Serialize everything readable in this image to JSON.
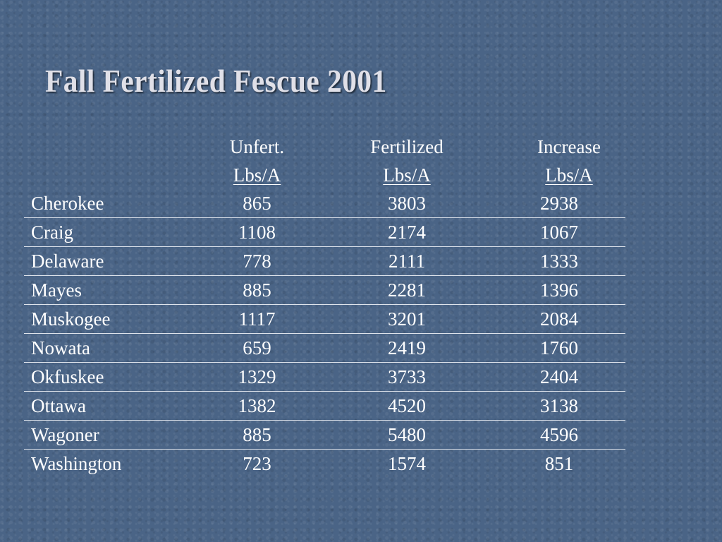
{
  "title": "Fall Fertilized Fescue 2001",
  "table": {
    "headers_row1": [
      "",
      "Unfert.",
      "Fertilized",
      "Increase"
    ],
    "headers_row2": [
      "",
      "Lbs/A",
      "Lbs/A",
      "Lbs/A"
    ],
    "rows": [
      {
        "county": "Cherokee",
        "unfert": "865",
        "fert": "3803",
        "increase": "2938"
      },
      {
        "county": "Craig",
        "unfert": "1108",
        "fert": "2174",
        "increase": "1067"
      },
      {
        "county": "Delaware",
        "unfert": "778",
        "fert": "2111",
        "increase": "1333"
      },
      {
        "county": "Mayes",
        "unfert": "885",
        "fert": "2281",
        "increase": "1396"
      },
      {
        "county": "Muskogee",
        "unfert": "1117",
        "fert": "3201",
        "increase": "2084"
      },
      {
        "county": "Nowata",
        "unfert": "659",
        "fert": "2419",
        "increase": "1760"
      },
      {
        "county": "Okfuskee",
        "unfert": "1329",
        "fert": "3733",
        "increase": "2404"
      },
      {
        "county": "Ottawa",
        "unfert": "1382",
        "fert": "4520",
        "increase": "3138"
      },
      {
        "county": "Wagoner",
        "unfert": "885",
        "fert": "5480",
        "increase": "4596"
      },
      {
        "county": "Washington",
        "unfert": "723",
        "fert": "1574",
        "increase": "851"
      }
    ]
  },
  "colors": {
    "background": "#4a6486",
    "title": "#e0e0e8",
    "text": "#ffffff",
    "rule": "#dfe4ec"
  }
}
